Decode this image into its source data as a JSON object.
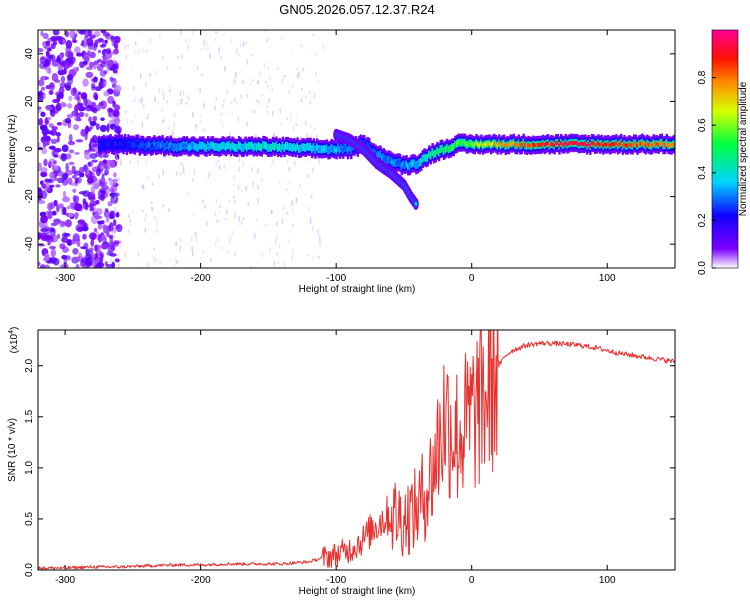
{
  "chart_data": [
    {
      "type": "heatmap",
      "title": "GN05.2026.057.12.37.R24",
      "xlabel": "Height of straight line (km)",
      "ylabel": "Frequency (Hz)",
      "xlim": [
        -320,
        150
      ],
      "ylim": [
        -50,
        50
      ],
      "xticks": [
        -300,
        -200,
        -100,
        0,
        100
      ],
      "xtick_labels": [
        "-300",
        "-200",
        "-100",
        "0",
        "100"
      ],
      "yticks": [
        -40,
        -20,
        0,
        20,
        40
      ],
      "ytick_labels": [
        "-40",
        "-20",
        "0",
        "20",
        "40"
      ],
      "colorbar": {
        "label": "Normalized spectral amplitude",
        "range": [
          0,
          1
        ],
        "ticks": [
          0,
          0.2,
          0.4,
          0.6,
          0.8
        ],
        "tick_labels": [
          "0.0",
          "0.2",
          "0.4",
          "0.6",
          "0.8"
        ],
        "colormap": "rainbow (white → violet → blue → cyan → green → yellow → red → magenta)"
      },
      "ridge": {
        "description": "Main spectral ridge near 0 Hz; weak noise below -270 km; Doppler branch descending between -100 and -30 km",
        "x": [
          -270,
          -200,
          -150,
          -110,
          -90,
          -80,
          -70,
          -60,
          -50,
          -40,
          -30,
          -20,
          -10,
          0,
          20,
          50,
          80,
          100,
          150
        ],
        "freq": [
          2,
          1,
          1,
          0,
          0,
          2,
          -2,
          -5,
          -7,
          -6,
          -2,
          0,
          2,
          2,
          2,
          2,
          2,
          2,
          2
        ],
        "amplitude": [
          0.2,
          0.35,
          0.4,
          0.35,
          0.3,
          0.25,
          0.3,
          0.3,
          0.3,
          0.35,
          0.45,
          0.5,
          0.55,
          0.6,
          0.75,
          0.85,
          0.95,
          0.85,
          0.8
        ],
        "branch_x": [
          -100,
          -90,
          -80,
          -70,
          -60,
          -50,
          -45,
          -40
        ],
        "branch_freq": [
          6,
          4,
          0,
          -6,
          -10,
          -15,
          -20,
          -24
        ]
      }
    },
    {
      "type": "line",
      "title": "",
      "xlabel": "Height of straight line (km)",
      "ylabel": "SNR (10 * v/v)",
      "y_multiplier_label": "(x10",
      "y_multiplier_exp": "4",
      "y_multiplier_close": ")",
      "xlim": [
        -320,
        150
      ],
      "ylim": [
        0,
        2.35
      ],
      "xticks": [
        -300,
        -200,
        -100,
        0,
        100
      ],
      "xtick_labels": [
        "-300",
        "-200",
        "-100",
        "0",
        "100"
      ],
      "yticks": [
        0,
        0.5,
        1.0,
        1.5,
        2.0
      ],
      "ytick_labels": [
        "0.0",
        "0.5",
        "1.0",
        "1.5",
        "2.0"
      ],
      "series": [
        {
          "name": "SNR",
          "color": "#e8312f",
          "x": [
            -320,
            -300,
            -280,
            -260,
            -240,
            -220,
            -200,
            -180,
            -160,
            -150,
            -140,
            -130,
            -120,
            -110,
            -100,
            -90,
            -80,
            -70,
            -60,
            -50,
            -40,
            -30,
            -25,
            -20,
            -15,
            -10,
            -5,
            0,
            5,
            10,
            15,
            20,
            25,
            30,
            40,
            50,
            60,
            70,
            80,
            90,
            100,
            110,
            120,
            130,
            140,
            150
          ],
          "y": [
            0.02,
            0.02,
            0.03,
            0.03,
            0.04,
            0.05,
            0.05,
            0.06,
            0.06,
            0.06,
            0.06,
            0.07,
            0.08,
            0.12,
            0.15,
            0.2,
            0.3,
            0.45,
            0.55,
            0.5,
            0.6,
            0.9,
            1.2,
            1.5,
            1.4,
            1.3,
            1.4,
            1.5,
            1.6,
            1.7,
            1.85,
            2.0,
            2.1,
            2.15,
            2.2,
            2.22,
            2.22,
            2.21,
            2.2,
            2.18,
            2.15,
            2.12,
            2.1,
            2.08,
            2.06,
            2.04
          ]
        }
      ]
    }
  ]
}
